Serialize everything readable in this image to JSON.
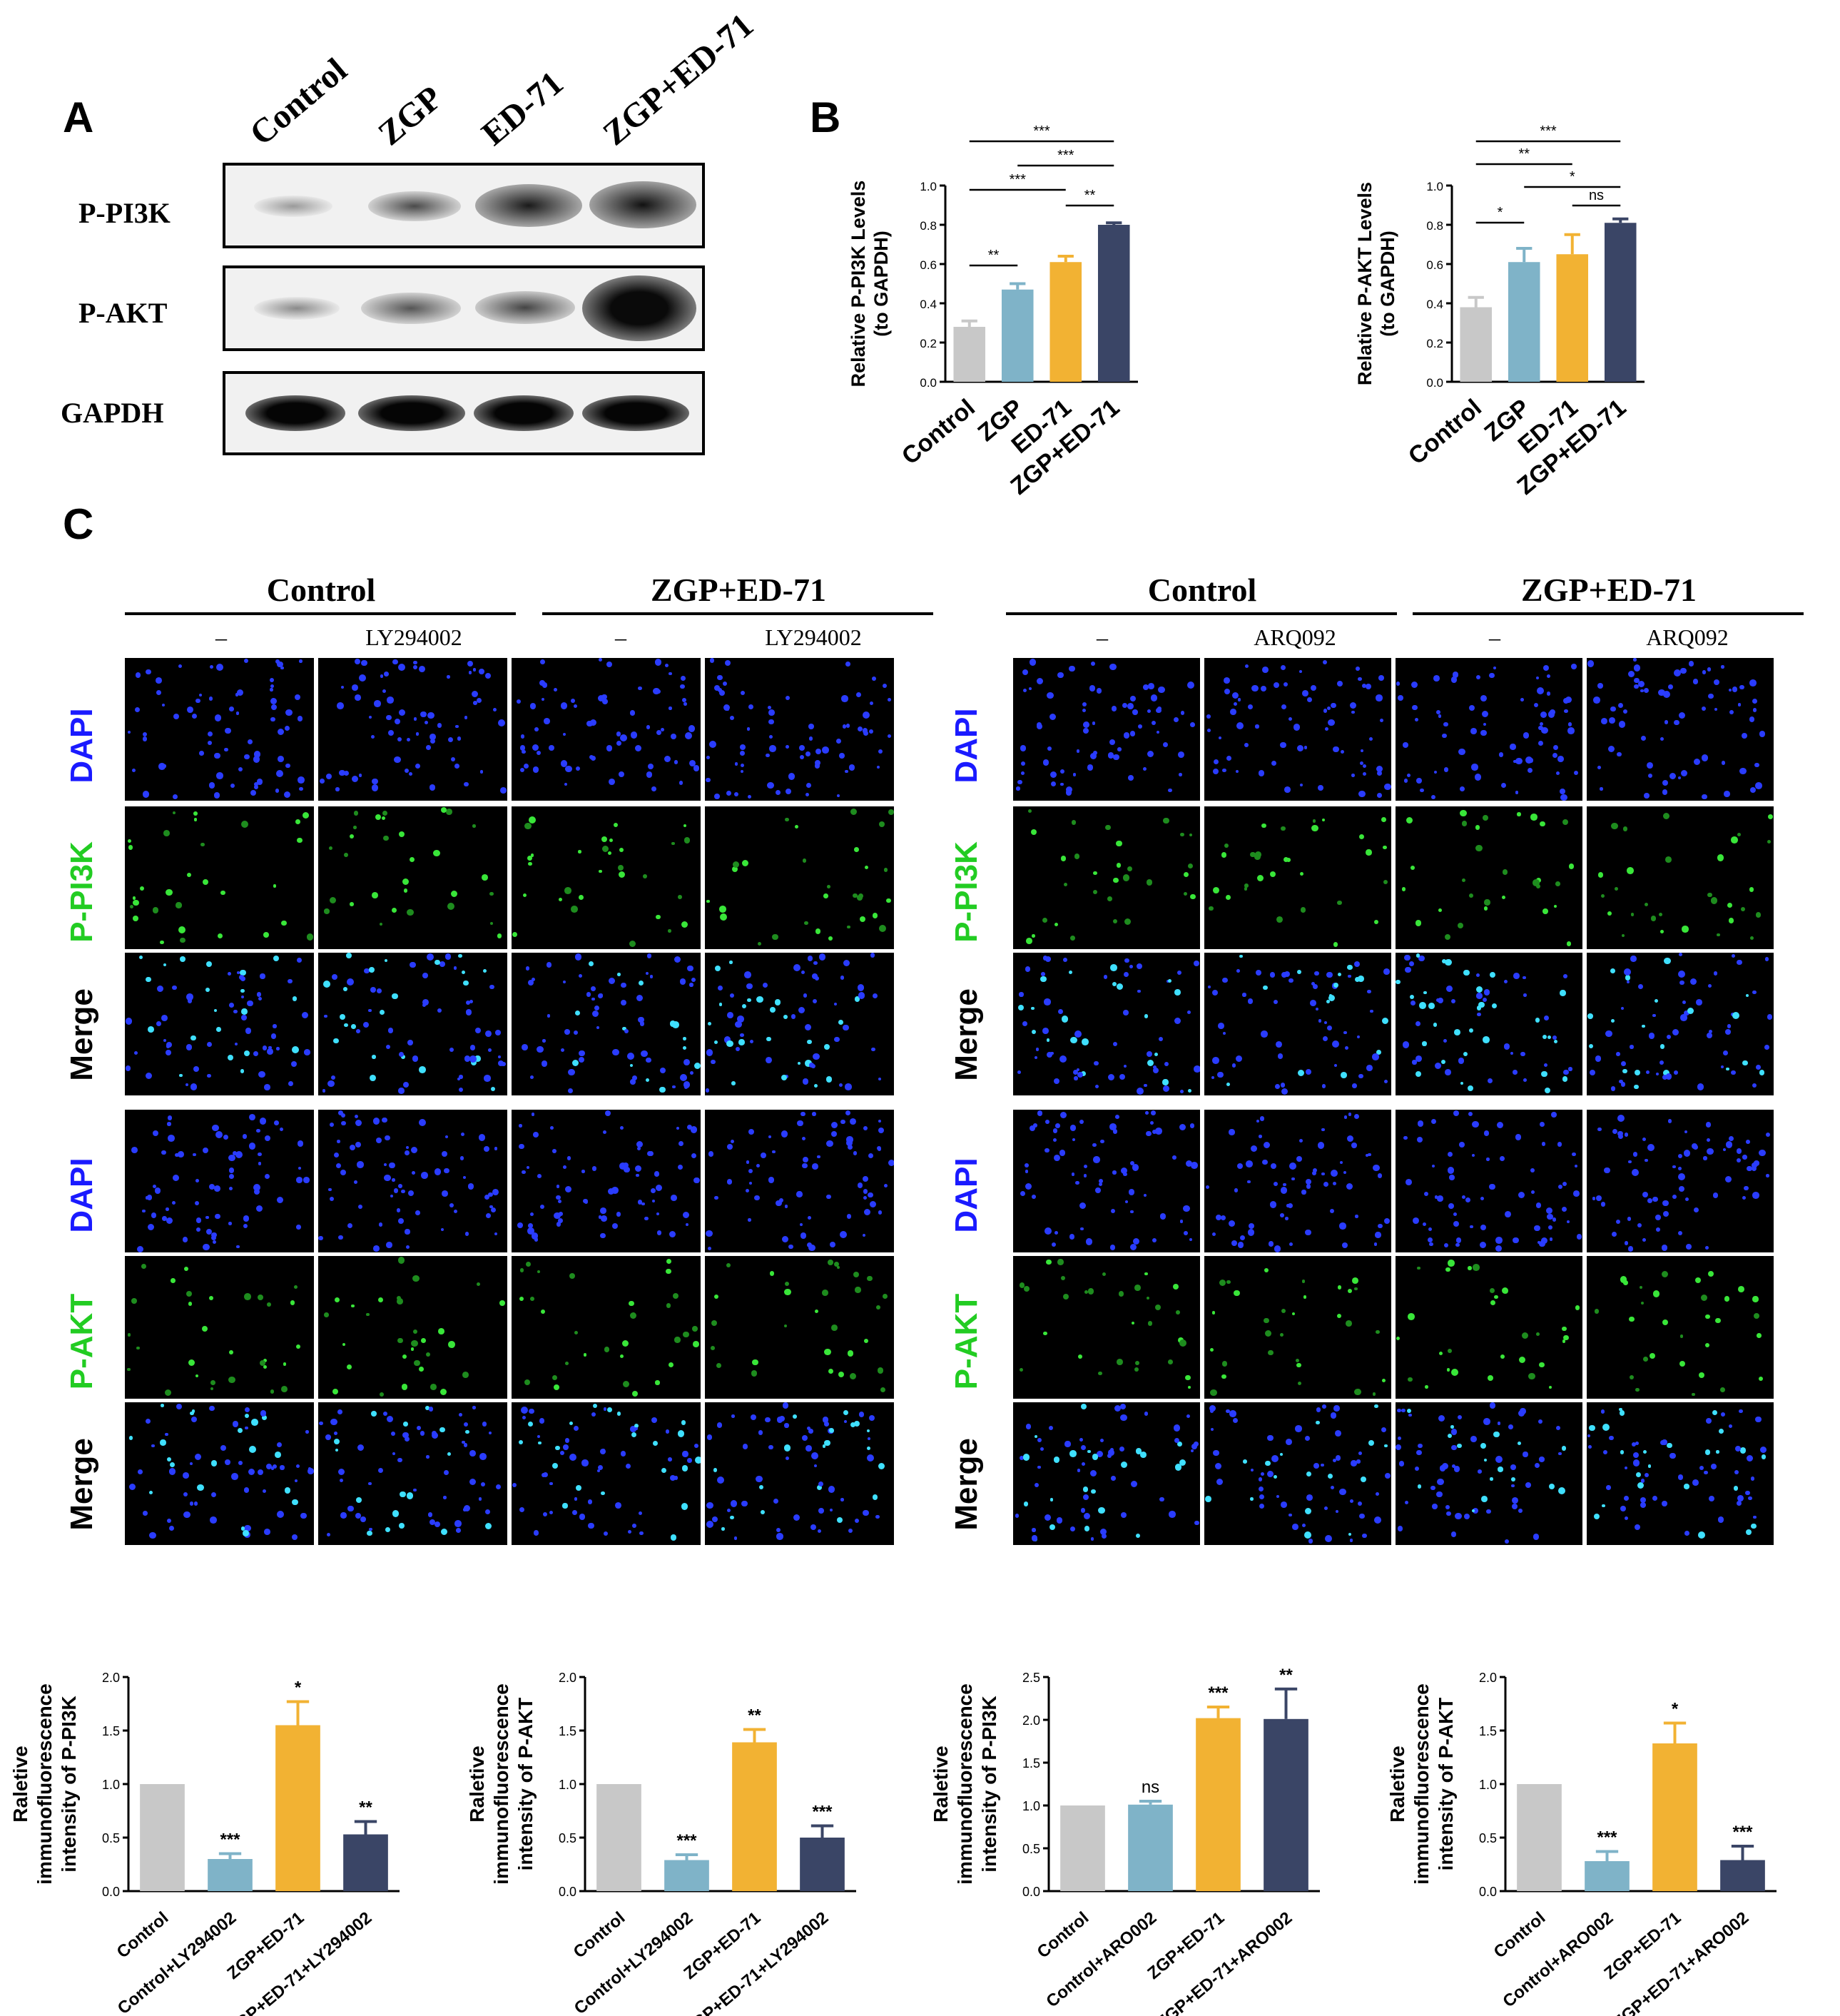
{
  "panels": {
    "a": "A",
    "b": "B",
    "c": "C"
  },
  "blot": {
    "columns": [
      "Control",
      "ZGP",
      "ED-71",
      "ZGP+ED-71"
    ],
    "rows": [
      "P-PI3K",
      "P-AKT",
      "GAPDH"
    ]
  },
  "micro": {
    "left": {
      "groups": [
        "Control",
        "ZGP+ED-71"
      ],
      "sublabels": [
        "–",
        "LY294002",
        "–",
        "LY294002"
      ]
    },
    "right": {
      "groups": [
        "Control",
        "ZGP+ED-71"
      ],
      "sublabels": [
        "–",
        "ARQ092",
        "–",
        "ARQ092"
      ]
    },
    "rows_left": [
      "DAPI",
      "P-PI3K",
      "Merge",
      "DAPI",
      "P-AKT",
      "Merge"
    ],
    "rows_right": [
      "DAPI",
      "P-PI3K",
      "Merge",
      "DAPI",
      "P-AKT",
      "Merge"
    ],
    "row_colors": [
      "#1a1aff",
      "#22cc22",
      "#000000",
      "#1a1aff",
      "#22cc22",
      "#000000"
    ]
  },
  "colors": {
    "control": "#c8c8c8",
    "zgp": "#7fb3c8",
    "ed71": "#f2b233",
    "combo": "#3a4566"
  },
  "chart_data": [
    {
      "type": "bar",
      "categories": [
        "Control",
        "ZGP",
        "ED-71",
        "ZGP+ED-71"
      ],
      "values": [
        0.28,
        0.47,
        0.61,
        0.8
      ],
      "errors": [
        0.03,
        0.03,
        0.03,
        0.01
      ],
      "ylabel": "Relative P-PI3K Levels\n(to GAPDH)",
      "ylim": [
        0,
        1.0
      ],
      "yticks": [
        "0.0",
        "0.2",
        "0.4",
        "0.6",
        "0.8",
        "1.0"
      ],
      "comparisons": [
        {
          "from": 0,
          "to": 3,
          "label": "***"
        },
        {
          "from": 1,
          "to": 3,
          "label": "***"
        },
        {
          "from": 0,
          "to": 2,
          "label": "***"
        },
        {
          "from": 2,
          "to": 3,
          "label": "**"
        },
        {
          "from": 0,
          "to": 1,
          "label": "**"
        }
      ]
    },
    {
      "type": "bar",
      "categories": [
        "Control",
        "ZGP",
        "ED-71",
        "ZGP+ED-71"
      ],
      "values": [
        0.38,
        0.61,
        0.65,
        0.81
      ],
      "errors": [
        0.05,
        0.07,
        0.1,
        0.02
      ],
      "ylabel": "Relative P-AKT Levels\n(to GAPDH)",
      "ylim": [
        0,
        1.0
      ],
      "yticks": [
        "0.0",
        "0.2",
        "0.4",
        "0.6",
        "0.8",
        "1.0"
      ],
      "comparisons": [
        {
          "from": 0,
          "to": 3,
          "label": "***"
        },
        {
          "from": 0,
          "to": 2,
          "label": "**"
        },
        {
          "from": 1,
          "to": 3,
          "label": "*"
        },
        {
          "from": 2,
          "to": 3,
          "label": "ns"
        },
        {
          "from": 0,
          "to": 1,
          "label": "*"
        }
      ]
    },
    {
      "type": "bar",
      "categories": [
        "Control",
        "Control+LY294002",
        "ZGP+ED-71",
        "ZGP+ED-71+LY294002"
      ],
      "values": [
        1.0,
        0.3,
        1.55,
        0.53
      ],
      "errors": [
        0,
        0.05,
        0.22,
        0.12
      ],
      "stars": [
        "",
        "***",
        "*",
        "**"
      ],
      "ylabel": "Raletive\nimmunofluorescence\nintensity of P-PI3K",
      "ylim": [
        0,
        2.0
      ],
      "yticks": [
        "0.0",
        "0.5",
        "1.0",
        "1.5",
        "2.0"
      ]
    },
    {
      "type": "bar",
      "categories": [
        "Control",
        "Control+LY294002",
        "ZGP+ED-71",
        "ZGP+ED-71+LY294002"
      ],
      "values": [
        1.0,
        0.29,
        1.39,
        0.5
      ],
      "errors": [
        0,
        0.05,
        0.12,
        0.11
      ],
      "stars": [
        "",
        "***",
        "**",
        "***"
      ],
      "ylabel": "Raletive\nimmunofluorescence\nintensity of P-AKT",
      "ylim": [
        0,
        2.0
      ],
      "yticks": [
        "0.0",
        "0.5",
        "1.0",
        "1.5",
        "2.0"
      ]
    },
    {
      "type": "bar",
      "categories": [
        "Control",
        "Control+ARO002",
        "ZGP+ED-71",
        "ZGP+ED-71+ARO002"
      ],
      "values": [
        1.0,
        1.01,
        2.02,
        2.01
      ],
      "errors": [
        0,
        0.04,
        0.13,
        0.35
      ],
      "stars": [
        "",
        "ns",
        "***",
        "**"
      ],
      "ylabel": "Raletive\nimmunofluorescence\nintensity of P-PI3K",
      "ylim": [
        0,
        2.5
      ],
      "yticks": [
        "0.0",
        "0.5",
        "1.0",
        "1.5",
        "2.0",
        "2.5"
      ]
    },
    {
      "type": "bar",
      "categories": [
        "Control",
        "Control+ARO002",
        "ZGP+ED-71",
        "ZGP+ED-71+ARO002"
      ],
      "values": [
        1.0,
        0.28,
        1.38,
        0.29
      ],
      "errors": [
        0,
        0.09,
        0.19,
        0.13
      ],
      "stars": [
        "",
        "***",
        "*",
        "***"
      ],
      "ylabel": "Raletive\nimmunofluorescence\nintensity of P-AKT",
      "ylim": [
        0,
        2.0
      ],
      "yticks": [
        "0.0",
        "0.5",
        "1.0",
        "1.5",
        "2.0"
      ]
    }
  ]
}
